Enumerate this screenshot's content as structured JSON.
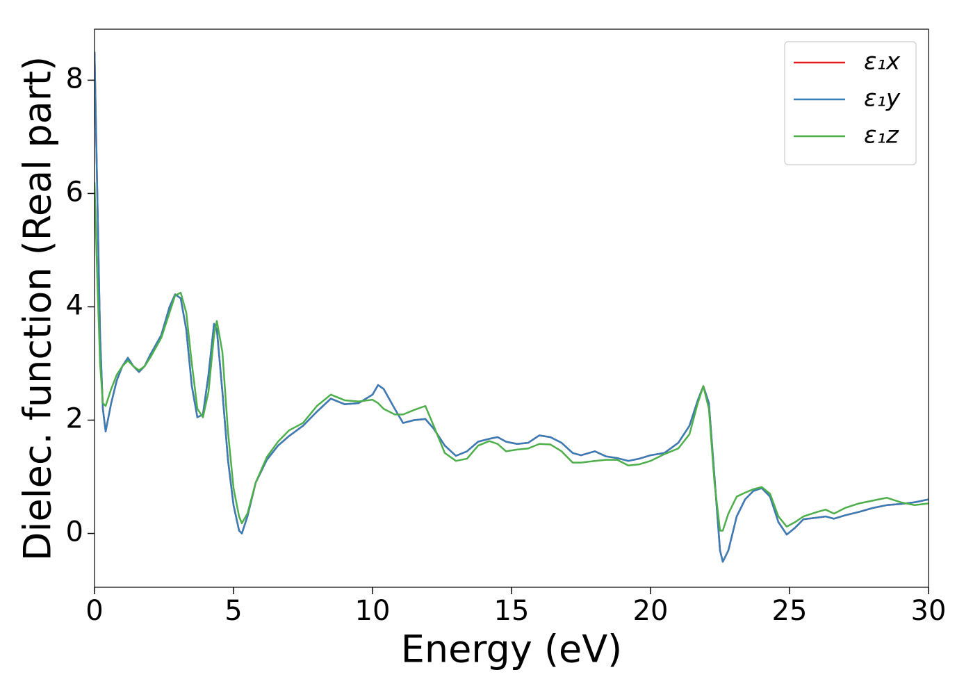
{
  "chart_data": {
    "type": "line",
    "xlabel": "Energy (eV)",
    "ylabel": "Dielec. function (Real part)",
    "x": [
      0,
      0.1,
      0.2,
      0.3,
      0.4,
      0.6,
      0.8,
      1.0,
      1.2,
      1.4,
      1.6,
      1.8,
      2.0,
      2.4,
      2.7,
      2.9,
      3.1,
      3.3,
      3.5,
      3.7,
      3.9,
      4.1,
      4.3,
      4.4,
      4.6,
      4.8,
      5.0,
      5.2,
      5.3,
      5.5,
      5.8,
      6.2,
      6.6,
      7.0,
      7.5,
      8.0,
      8.5,
      9.0,
      9.5,
      10.0,
      10.2,
      10.4,
      10.8,
      11.1,
      11.5,
      11.9,
      12.2,
      12.6,
      13.0,
      13.4,
      13.8,
      14.2,
      14.5,
      14.8,
      15.2,
      15.6,
      16.0,
      16.4,
      16.8,
      17.2,
      17.5,
      18.0,
      18.4,
      18.8,
      19.2,
      19.6,
      20.0,
      20.5,
      21.0,
      21.4,
      21.7,
      21.9,
      22.1,
      22.3,
      22.5,
      22.6,
      22.8,
      23.1,
      23.4,
      23.7,
      24.0,
      24.3,
      24.6,
      24.9,
      25.2,
      25.5,
      26.0,
      26.3,
      26.6,
      27.0,
      27.5,
      28.0,
      28.5,
      29.0,
      29.5,
      30.0
    ],
    "series": [
      {
        "name": "ε₁x",
        "color": "#e41a1c",
        "values": [
          8.5,
          6,
          3.5,
          2.2,
          1.8,
          2.3,
          2.7,
          2.95,
          3.1,
          2.95,
          2.85,
          2.95,
          3.15,
          3.5,
          4.0,
          4.22,
          4.15,
          3.6,
          2.6,
          2.05,
          2.1,
          2.8,
          3.7,
          3.6,
          2.5,
          1.3,
          0.5,
          0.05,
          0.0,
          0.3,
          0.9,
          1.3,
          1.55,
          1.72,
          1.9,
          2.15,
          2.38,
          2.28,
          2.3,
          2.45,
          2.62,
          2.55,
          2.2,
          1.95,
          2.0,
          2.02,
          1.85,
          1.55,
          1.37,
          1.45,
          1.62,
          1.67,
          1.7,
          1.62,
          1.58,
          1.6,
          1.73,
          1.7,
          1.6,
          1.42,
          1.38,
          1.45,
          1.36,
          1.33,
          1.28,
          1.32,
          1.38,
          1.42,
          1.6,
          1.9,
          2.35,
          2.6,
          2.3,
          1.0,
          -0.3,
          -0.5,
          -0.3,
          0.3,
          0.6,
          0.75,
          0.8,
          0.65,
          0.2,
          -0.02,
          0.1,
          0.25,
          0.28,
          0.3,
          0.26,
          0.32,
          0.38,
          0.45,
          0.5,
          0.52,
          0.55,
          0.6
        ]
      },
      {
        "name": "ε₁y",
        "color": "#377eb8",
        "values": [
          8.5,
          6,
          3.5,
          2.2,
          1.8,
          2.3,
          2.7,
          2.95,
          3.1,
          2.95,
          2.85,
          2.95,
          3.15,
          3.5,
          4.0,
          4.22,
          4.15,
          3.6,
          2.6,
          2.05,
          2.1,
          2.8,
          3.7,
          3.6,
          2.5,
          1.3,
          0.5,
          0.05,
          0.0,
          0.3,
          0.9,
          1.3,
          1.55,
          1.72,
          1.9,
          2.15,
          2.38,
          2.28,
          2.3,
          2.45,
          2.62,
          2.55,
          2.2,
          1.95,
          2.0,
          2.02,
          1.85,
          1.55,
          1.37,
          1.45,
          1.62,
          1.67,
          1.7,
          1.62,
          1.58,
          1.6,
          1.73,
          1.7,
          1.6,
          1.42,
          1.38,
          1.45,
          1.36,
          1.33,
          1.28,
          1.32,
          1.38,
          1.42,
          1.6,
          1.9,
          2.35,
          2.6,
          2.3,
          1.0,
          -0.3,
          -0.5,
          -0.3,
          0.3,
          0.6,
          0.75,
          0.8,
          0.65,
          0.2,
          -0.02,
          0.1,
          0.25,
          0.28,
          0.3,
          0.26,
          0.32,
          0.38,
          0.45,
          0.5,
          0.52,
          0.55,
          0.6
        ]
      },
      {
        "name": "ε₁z",
        "color": "#4daf4a",
        "values": [
          6.2,
          4.5,
          3.0,
          2.3,
          2.25,
          2.55,
          2.8,
          2.95,
          3.05,
          2.95,
          2.88,
          2.95,
          3.1,
          3.45,
          3.9,
          4.2,
          4.25,
          3.9,
          3.0,
          2.2,
          2.05,
          2.5,
          3.5,
          3.75,
          3.2,
          1.8,
          0.8,
          0.3,
          0.18,
          0.35,
          0.9,
          1.35,
          1.62,
          1.82,
          1.95,
          2.25,
          2.45,
          2.35,
          2.33,
          2.36,
          2.3,
          2.2,
          2.1,
          2.1,
          2.18,
          2.25,
          1.9,
          1.42,
          1.28,
          1.32,
          1.55,
          1.63,
          1.58,
          1.45,
          1.48,
          1.5,
          1.58,
          1.57,
          1.45,
          1.25,
          1.25,
          1.28,
          1.3,
          1.3,
          1.2,
          1.22,
          1.28,
          1.4,
          1.5,
          1.75,
          2.3,
          2.6,
          2.2,
          0.9,
          0.05,
          0.05,
          0.35,
          0.65,
          0.72,
          0.78,
          0.82,
          0.7,
          0.3,
          0.12,
          0.2,
          0.3,
          0.38,
          0.42,
          0.35,
          0.45,
          0.53,
          0.58,
          0.63,
          0.55,
          0.5,
          0.53
        ]
      }
    ],
    "xlim": [
      0,
      30
    ],
    "xticks": [
      0,
      5,
      10,
      15,
      20,
      25,
      30
    ],
    "ylim": [
      -0.95,
      8.9
    ],
    "yticks": [
      0,
      2,
      4,
      6,
      8
    ],
    "grid": false,
    "legend": "upper right"
  }
}
